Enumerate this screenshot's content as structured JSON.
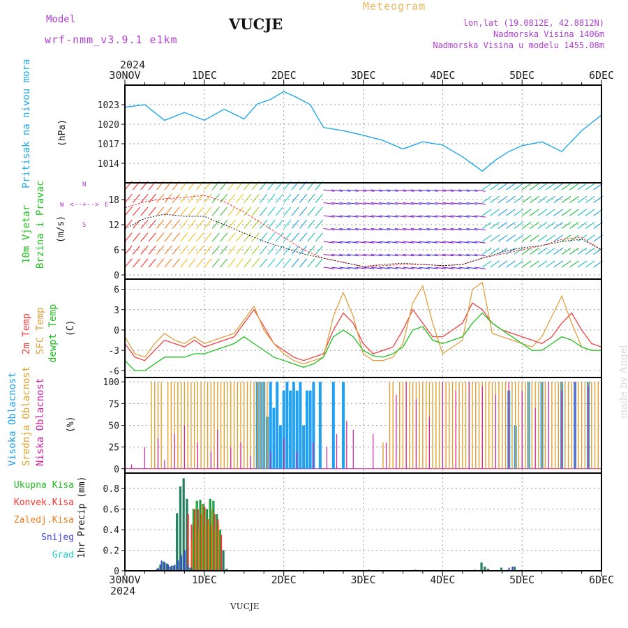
{
  "header": {
    "model_label": "Model",
    "model_name": "wrf-nmm_v3.9.1  e1km",
    "station": "VUCJE",
    "title": "Meteogram",
    "coords": "lon,lat (19.0812E, 42.8812N)",
    "elevation": "Nadmorska Visina 1406m",
    "model_elevation": "Nadmorska Visina u modelu 1455.08m",
    "year": "2024",
    "footer_year": "2024",
    "footer_station": "VUCJE",
    "credit": "made by Angel"
  },
  "x_ticks": [
    "30NOV",
    "1DEC",
    "2DEC",
    "3DEC",
    "4DEC",
    "5DEC",
    "6DEC"
  ],
  "colors": {
    "pressure": "#20a8e8",
    "wind_speed": "#ff3030",
    "wind_gust": "#111111",
    "temp2m": "#f04040",
    "sfc_temp": "#e0a040",
    "dewpt": "#20c020",
    "high_cloud": "#20a0f0",
    "mid_cloud": "#e0a030",
    "low_cloud": "#d020a0",
    "total_precip": "#20c020",
    "conv_precip": "#ff3030",
    "frozen_precip": "#f08020",
    "snow": "#4040e0",
    "hail": "#20d0d0",
    "grid": "#999999"
  },
  "panels": {
    "pressure": {
      "label1": "Pritisak na nivou mora",
      "unit": "(hPa)"
    },
    "wind": {
      "label1": "10m Vjetar",
      "label2": "Brzina i Pravac",
      "unit": "(m/s)",
      "compass_n": "N",
      "compass_s": "S",
      "compass_w": "W",
      "compass_e": "E"
    },
    "temp": {
      "label1": "2m Temp",
      "label2": "SFC Temp",
      "label3": "dewpt Temp",
      "unit": "(C)"
    },
    "cloud": {
      "label1": "Visoka Oblacnost",
      "label2": "Srednja Oblacnost",
      "label3": "Niska Oblacnost",
      "unit": "(%)"
    },
    "precip": {
      "legend": [
        "Ukupna Kisa",
        "Konvek.Kisa",
        "Zaledj.Kisa",
        "Snijeg",
        "Grad"
      ],
      "ylabel": "1hr Precip (mm)"
    }
  },
  "chart_data": [
    {
      "type": "line",
      "name": "pressure",
      "ylim": [
        1011,
        1026
      ],
      "yticks": [
        1014,
        1017,
        1020,
        1023
      ],
      "x": [
        0,
        6,
        12,
        18,
        24,
        30,
        36,
        40,
        44,
        48,
        52,
        56,
        60,
        66,
        72,
        78,
        84,
        90,
        96,
        102,
        108,
        112,
        116,
        120,
        126,
        132,
        138,
        144
      ],
      "series": [
        {
          "values": [
            1022.6,
            1023.0,
            1020.6,
            1021.8,
            1020.6,
            1022.3,
            1020.8,
            1023.1,
            1023.8,
            1025.0,
            1024.1,
            1023.0,
            1019.5,
            1019.0,
            1018.3,
            1017.5,
            1016.2,
            1017.3,
            1016.8,
            1015.0,
            1012.8,
            1014.5,
            1015.8,
            1016.7,
            1017.3,
            1015.8,
            1019.0,
            1021.4
          ]
        }
      ]
    },
    {
      "type": "line",
      "name": "wind",
      "ylim": [
        -1,
        22
      ],
      "yticks": [
        0,
        6,
        12,
        18
      ],
      "x": [
        0,
        6,
        12,
        18,
        24,
        30,
        36,
        42,
        48,
        54,
        60,
        66,
        72,
        78,
        84,
        90,
        96,
        102,
        108,
        114,
        120,
        126,
        132,
        138,
        144
      ],
      "series": [
        {
          "values": [
            16,
            17.5,
            18.2,
            18.5,
            19,
            17.5,
            15,
            12,
            9,
            6,
            4,
            3,
            2,
            2.2,
            2.5,
            2.5,
            2.2,
            2.5,
            4,
            5,
            6,
            7,
            8.5,
            9,
            6
          ]
        },
        {
          "values": [
            11,
            13.5,
            14.5,
            14,
            14,
            12,
            10,
            8,
            6.5,
            5,
            4,
            3,
            2,
            2.5,
            2.8,
            2.5,
            2.2,
            2.5,
            4,
            5.5,
            6.5,
            7,
            8,
            8.5,
            6
          ]
        }
      ]
    },
    {
      "type": "line",
      "name": "temperature",
      "ylim": [
        -7,
        7.5
      ],
      "yticks": [
        -6,
        -3,
        0,
        3,
        6
      ],
      "x": [
        0,
        3,
        6,
        9,
        12,
        15,
        18,
        21,
        24,
        27,
        30,
        33,
        36,
        39,
        42,
        45,
        48,
        51,
        54,
        57,
        60,
        63,
        66,
        69,
        72,
        75,
        78,
        81,
        84,
        87,
        90,
        93,
        96,
        99,
        102,
        105,
        108,
        111,
        114,
        117,
        120,
        123,
        126,
        129,
        132,
        135,
        138,
        141,
        144
      ],
      "series": [
        {
          "values": [
            -2,
            -4,
            -4.5,
            -3,
            -1.5,
            -2,
            -2.5,
            -1.5,
            -2.5,
            -2,
            -1.5,
            -1,
            1,
            3,
            0.5,
            -2,
            -3,
            -4,
            -4.5,
            -4,
            -3.5,
            0,
            2.5,
            1,
            -2,
            -3.5,
            -3,
            -2.5,
            0,
            3,
            1,
            -1,
            -1,
            0,
            1,
            4,
            3,
            1,
            0,
            -0.5,
            -1,
            -1.5,
            -2,
            -1,
            1,
            2.5,
            0,
            -2,
            -2.5
          ]
        },
        {
          "values": [
            -1,
            -3.5,
            -4,
            -2,
            -0.5,
            -1.5,
            -2,
            -1,
            -2,
            -1.5,
            -1,
            -0.5,
            1.5,
            3.5,
            0,
            -2,
            -3.5,
            -4.5,
            -5,
            -4.5,
            -4,
            2,
            5.5,
            2,
            -3.5,
            -4.5,
            -4.5,
            -4,
            -2,
            4,
            6.5,
            1,
            -3.5,
            -2.5,
            -1.5,
            6,
            7,
            -0.5,
            -1,
            -1.5,
            -2,
            -2.5,
            -1,
            2,
            5,
            1,
            -2.5,
            -3,
            -3
          ]
        },
        {
          "values": [
            -4.5,
            -6,
            -6,
            -5,
            -4,
            -4,
            -4,
            -3.5,
            -3.5,
            -3,
            -2.5,
            -2,
            -1,
            -2,
            -3,
            -4,
            -4.5,
            -5,
            -5.5,
            -5,
            -4,
            -1,
            0,
            -1,
            -3,
            -3.8,
            -4,
            -3.5,
            -2.5,
            0,
            0.5,
            -1.5,
            -2,
            -1.5,
            -1,
            1,
            2.5,
            1,
            0,
            -1,
            -2,
            -3,
            -3,
            -2,
            -1,
            -1.5,
            -2.5,
            -3,
            -3
          ]
        }
      ]
    },
    {
      "type": "bar",
      "name": "cloud",
      "ylim": [
        -5,
        105
      ],
      "yticks": [
        0,
        25,
        50,
        75,
        100
      ],
      "series": [
        {
          "name": "high",
          "x": [
            40,
            41,
            42,
            43,
            44,
            45,
            46,
            47,
            48,
            49,
            50,
            51,
            52,
            53,
            54,
            55,
            56,
            57,
            59,
            63,
            66,
            116,
            118,
            122,
            126,
            132,
            136,
            140
          ],
          "values": [
            100,
            100,
            100,
            60,
            100,
            70,
            100,
            50,
            90,
            100,
            90,
            100,
            90,
            100,
            50,
            90,
            90,
            100,
            100,
            100,
            100,
            90,
            50,
            100,
            100,
            100,
            100,
            100
          ]
        },
        {
          "name": "mid",
          "x": [
            8,
            9,
            10,
            11,
            13,
            14,
            15,
            16,
            17,
            18,
            19,
            20,
            21,
            22,
            23,
            24,
            25,
            26,
            27,
            28,
            29,
            30,
            31,
            32,
            33,
            34,
            35,
            36,
            37,
            38,
            39,
            40,
            41,
            42,
            43,
            78,
            80,
            81,
            83,
            84,
            85,
            86,
            87,
            88,
            89,
            90,
            91,
            92,
            93,
            94,
            95,
            96,
            97,
            98,
            99,
            100,
            101,
            102,
            103,
            104,
            105,
            106,
            107,
            108,
            109,
            110,
            111,
            112,
            113,
            114,
            115,
            116,
            117,
            118,
            119,
            120,
            121,
            122,
            123,
            124,
            125,
            126,
            127,
            128,
            129,
            130,
            131,
            132,
            133,
            134,
            135,
            136,
            137,
            138,
            139,
            140,
            141,
            142,
            143
          ],
          "values": [
            100,
            100,
            100,
            100,
            100,
            100,
            100,
            100,
            100,
            100,
            100,
            100,
            100,
            100,
            100,
            100,
            100,
            100,
            100,
            100,
            100,
            100,
            100,
            100,
            100,
            100,
            100,
            100,
            100,
            100,
            100,
            100,
            100,
            100,
            100,
            30,
            100,
            100,
            100,
            100,
            100,
            100,
            100,
            100,
            100,
            100,
            100,
            100,
            100,
            100,
            100,
            100,
            100,
            100,
            100,
            100,
            100,
            100,
            100,
            100,
            100,
            100,
            100,
            100,
            100,
            100,
            100,
            100,
            100,
            100,
            100,
            100,
            100,
            100,
            100,
            100,
            100,
            100,
            100,
            100,
            100,
            100,
            100,
            100,
            100,
            100,
            100,
            100,
            100,
            100,
            100,
            100,
            100,
            100,
            100,
            100,
            100,
            100,
            100
          ]
        },
        {
          "name": "low",
          "x": [
            2,
            6,
            10,
            12,
            15,
            18,
            22,
            26,
            28,
            32,
            35,
            38,
            44,
            48,
            52,
            57,
            61,
            64,
            67,
            69,
            75,
            79,
            82,
            85,
            88,
            92,
            96,
            100,
            104,
            108,
            112,
            116,
            120,
            124,
            128,
            132,
            136,
            140,
            144
          ],
          "values": [
            5,
            25,
            35,
            10,
            40,
            50,
            30,
            20,
            45,
            25,
            30,
            15,
            20,
            35,
            20,
            30,
            25,
            40,
            55,
            45,
            40,
            30,
            85,
            100,
            80,
            60,
            100,
            90,
            100,
            95,
            85,
            100,
            90,
            70,
            100,
            90,
            100,
            95,
            100
          ]
        }
      ]
    },
    {
      "type": "bar",
      "name": "precip",
      "ylim": [
        0,
        0.95
      ],
      "yticks": [
        0,
        0.2,
        0.4,
        0.6,
        0.8
      ],
      "series": [
        {
          "name": "total",
          "x": [
            10,
            11,
            12,
            13,
            14,
            15,
            16,
            17,
            18,
            19,
            20,
            21,
            22,
            23,
            24,
            25,
            26,
            27,
            28,
            29,
            30,
            31,
            74,
            88,
            106,
            108,
            109,
            110,
            114,
            116,
            118
          ],
          "values": [
            0.02,
            0.06,
            0.09,
            0.07,
            0.04,
            0.05,
            0.56,
            0.82,
            0.9,
            0.7,
            0.03,
            0.6,
            0.68,
            0.69,
            0.65,
            0.6,
            0.7,
            0.68,
            0.55,
            0.4,
            0.2,
            0.02,
            0.01,
            0.01,
            0.01,
            0.08,
            0.04,
            0.02,
            0.03,
            0.01,
            0.04
          ]
        },
        {
          "name": "conv",
          "x": [
            19,
            20,
            21,
            22,
            23,
            24,
            25,
            26,
            27,
            28,
            29
          ],
          "values": [
            0.55,
            0.45,
            0.6,
            0.6,
            0.55,
            0.62,
            0.5,
            0.45,
            0.55,
            0.5,
            0.35
          ]
        },
        {
          "name": "frozen",
          "x": [
            20,
            21,
            22,
            23,
            24,
            25,
            26,
            27,
            28
          ],
          "values": [
            0.3,
            0.5,
            0.4,
            0.65,
            0.45,
            0.5,
            0.6,
            0.4,
            0.45
          ]
        },
        {
          "name": "snow",
          "x": [
            10,
            11,
            12,
            13,
            14,
            15,
            16,
            17,
            18,
            19,
            20,
            116,
            117
          ],
          "values": [
            0.03,
            0.1,
            0.08,
            0.06,
            0.05,
            0.06,
            0.1,
            0.15,
            0.2,
            0.05,
            0.03,
            0.03,
            0.04
          ]
        }
      ]
    }
  ]
}
